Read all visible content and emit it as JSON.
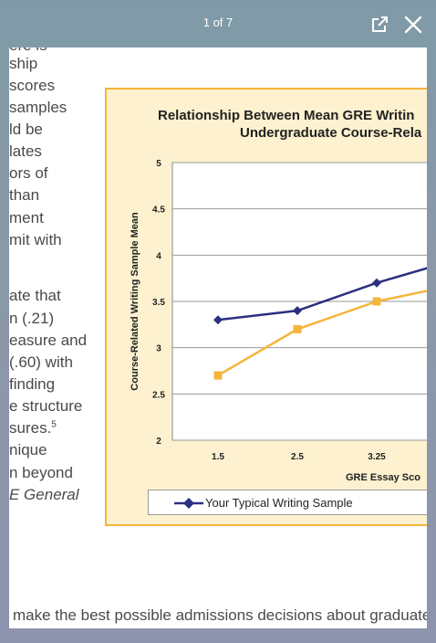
{
  "viewer": {
    "page_counter": "1 of 7",
    "open_external_icon": "open-in-new-icon",
    "close_icon": "close-x-icon"
  },
  "document": {
    "left_column_lines": [
      "ere is",
      "ship",
      " scores",
      "samples",
      "ld be",
      "lates",
      "ors of",
      " than",
      "ment",
      "mit with",
      "",
      "ate that",
      "n (.21)",
      "easure and",
      "(.60) with",
      " finding",
      "e structure",
      "sures.",
      "nique",
      "n beyond",
      "E General"
    ],
    "footnote_marker": "5",
    "bottom_line": " make the best possible admissions decisions about graduate"
  },
  "chart_data": {
    "type": "line",
    "title": "Relationship Between Mean GRE Writin",
    "subtitle": "Undergraduate Course-Rela",
    "xlabel": "GRE Essay Sco",
    "ylabel": "Course-Related Writing Sample Mean",
    "categories": [
      "1.5",
      "2.5",
      "3.25",
      ""
    ],
    "y_ticks": [
      "2",
      "2.5",
      "3",
      "3.5",
      "4",
      "4.5",
      "5"
    ],
    "ylim": [
      2,
      5
    ],
    "grid": true,
    "series": [
      {
        "name": "Your Typical Writing Sample",
        "color": "#2b2f7f",
        "marker": "diamond",
        "values": [
          3.3,
          3.4,
          3.7,
          3.95
        ]
      },
      {
        "name": "",
        "color": "#f5b53d",
        "marker": "square",
        "values": [
          2.7,
          3.2,
          3.5,
          3.68
        ]
      }
    ],
    "legend_position": "bottom"
  }
}
